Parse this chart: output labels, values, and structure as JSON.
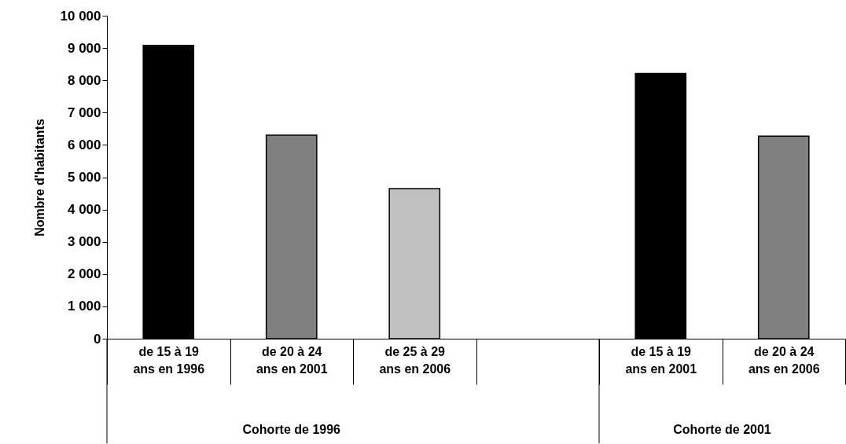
{
  "chart_data": {
    "type": "bar",
    "ylabel": "Nombre d'habitants",
    "categories": [
      "de 15 à 19 ans en 1996",
      "de 20 à 24 ans en 2001",
      "de 25 à 29 ans en 2006",
      null,
      "de 15 à 19 ans en 2001",
      "de 20 à 24 ans en 2006"
    ],
    "values": [
      9080,
      6300,
      4650,
      null,
      8210,
      6270
    ],
    "colors": [
      "#000000",
      "#808080",
      "#c0c0c0",
      "#ffffff",
      "#000000",
      "#808080"
    ],
    "ylim": [
      0,
      10000
    ],
    "yticks": [
      0,
      {
        "value": 1000,
        "label": "1 000"
      },
      {
        "value": 2000,
        "label": "2 000"
      },
      {
        "value": 3000,
        "label": "3 000"
      },
      {
        "value": 4000,
        "label": "4 000"
      },
      {
        "value": 5000,
        "label": "5 000"
      },
      {
        "value": 6000,
        "label": "6 000"
      },
      {
        "value": 7000,
        "label": "7 000"
      },
      {
        "value": 8000,
        "label": "8 000"
      },
      {
        "value": 9000,
        "label": "9 000"
      },
      {
        "value": 10000,
        "label": "10 000"
      }
    ],
    "annotations": [
      "Cohorte de 1996",
      "Cohorte de 2001"
    ],
    "grid": false
  }
}
